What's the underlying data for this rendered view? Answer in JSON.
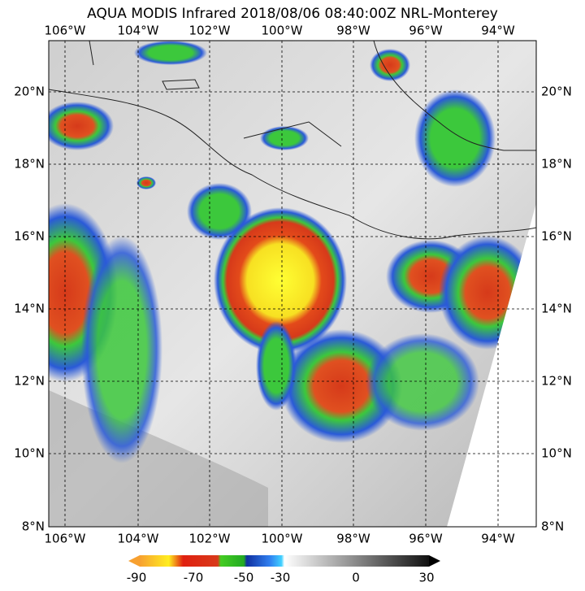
{
  "header": {
    "title": "AQUA MODIS Infrared 2018/08/06 08:40:00Z NRL-Monterey"
  },
  "longitude_labels": [
    "106°W",
    "104°W",
    "102°W",
    "100°W",
    "98°W",
    "96°W",
    "94°W"
  ],
  "latitude_labels": [
    "20°N",
    "18°N",
    "16°N",
    "14°N",
    "12°N",
    "10°N",
    "8°N"
  ],
  "colorbar": {
    "tick_labels": [
      "-90",
      "-70",
      "-50",
      "-30",
      "0",
      "30"
    ]
  }
}
